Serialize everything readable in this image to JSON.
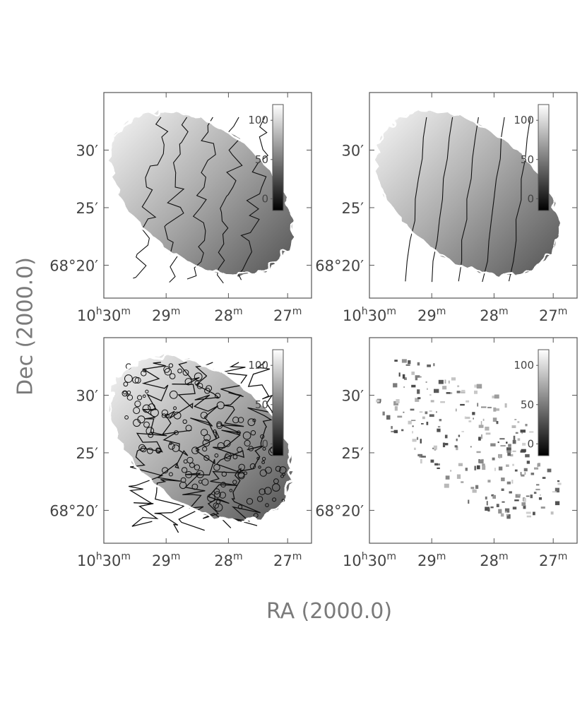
{
  "xlabel": "RA (2000.0)",
  "ylabel": "Dec (2000.0)",
  "chart_data": [
    {
      "type": "heatmap",
      "panel": "top-left",
      "description_of_map": "velocity field with contours",
      "x_ticks": [
        {
          "h": "10",
          "m": "30",
          "show_h": true
        },
        {
          "m": "29"
        },
        {
          "m": "28"
        },
        {
          "m": "27"
        }
      ],
      "y_ticks": [
        {
          "label": "30′"
        },
        {
          "label": "25′"
        },
        {
          "label": "68°20′",
          "deg": "68",
          "min": "20"
        }
      ],
      "colorbar": {
        "ticks": [
          "100",
          "50",
          "0"
        ],
        "range": [
          -15,
          120
        ]
      },
      "contour_density": "medium"
    },
    {
      "type": "heatmap",
      "panel": "top-right",
      "x_ticks": [
        {
          "h": "10",
          "m": "30",
          "show_h": true
        },
        {
          "m": "29"
        },
        {
          "m": "28"
        },
        {
          "m": "27"
        }
      ],
      "y_ticks": [
        {
          "label": "30′"
        },
        {
          "label": "25′"
        },
        {
          "label": "68°20′",
          "deg": "68",
          "min": "20"
        }
      ],
      "colorbar": {
        "ticks": [
          "100",
          "50",
          "0"
        ],
        "range": [
          -15,
          120
        ]
      },
      "contour_density": "smooth"
    },
    {
      "type": "heatmap",
      "panel": "bottom-left",
      "x_ticks": [
        {
          "h": "10",
          "m": "30",
          "show_h": true
        },
        {
          "m": "29"
        },
        {
          "m": "28"
        },
        {
          "m": "27"
        }
      ],
      "y_ticks": [
        {
          "label": "30′"
        },
        {
          "label": "25′"
        },
        {
          "label": "68°20′",
          "deg": "68",
          "min": "20"
        }
      ],
      "colorbar": {
        "ticks": [
          "100",
          "50",
          "0"
        ],
        "range": [
          -15,
          120
        ]
      },
      "contour_density": "dense"
    },
    {
      "type": "heatmap",
      "panel": "bottom-right",
      "x_ticks": [
        {
          "h": "10",
          "m": "30",
          "show_h": true
        },
        {
          "m": "29"
        },
        {
          "m": "28"
        },
        {
          "m": "27"
        }
      ],
      "y_ticks": [
        {
          "label": "30′"
        },
        {
          "label": "25′"
        },
        {
          "label": "68°20′",
          "deg": "68",
          "min": "20"
        }
      ],
      "colorbar": {
        "ticks": [
          "100",
          "50",
          "0"
        ],
        "range": [
          -15,
          120
        ]
      },
      "contour_density": "residual"
    }
  ]
}
